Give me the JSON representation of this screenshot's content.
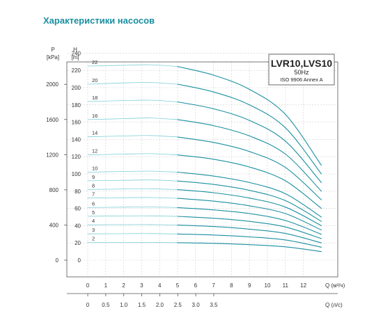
{
  "page_title": "Характеристики насосов",
  "chart_data": {
    "type": "line",
    "title": "LVR10,LVS10",
    "subtitle": "50Hz",
    "standard": "ISO 9906 Annex A",
    "y_left_label": "P",
    "y_left_unit": "[kPa]",
    "y_right_label": "H",
    "y_right_unit": "[m]",
    "x_label": "Q (м³/ч)",
    "x2_label": "Q (л/с)",
    "xlim": [
      0,
      13
    ],
    "ylim": [
      0,
      240
    ],
    "x_ticks": [
      0,
      1,
      2,
      3,
      4,
      5,
      6,
      7,
      8,
      9,
      10,
      11,
      12
    ],
    "x2_ticks": [
      0,
      0.5,
      1.0,
      1.5,
      2.0,
      2.5,
      3.0,
      3.5
    ],
    "x2_tick_labels": [
      "0",
      "0.5",
      "1.0",
      "1.5",
      "2.0",
      "2.5",
      "3.0",
      "3.5"
    ],
    "y_ticks": [
      0,
      20,
      40,
      60,
      80,
      100,
      120,
      140,
      160,
      180,
      200,
      220,
      240
    ],
    "p_ticks": [
      0,
      400,
      800,
      1200,
      1600,
      2000
    ],
    "grid": true,
    "series": [
      {
        "name": "2",
        "x": [
          0,
          2,
          3.5,
          5,
          7,
          9,
          11,
          13
        ],
        "y": [
          20.5,
          20.5,
          20.6,
          20.3,
          19.5,
          18,
          15.5,
          10
        ]
      },
      {
        "name": "3",
        "x": [
          0,
          2,
          3.5,
          5,
          7,
          9,
          11,
          13
        ],
        "y": [
          30.5,
          30.7,
          30.8,
          30.4,
          29.2,
          27,
          23.5,
          15
        ]
      },
      {
        "name": "4",
        "x": [
          0,
          2,
          3.5,
          5,
          7,
          9,
          11,
          13
        ],
        "y": [
          41,
          41.2,
          41.3,
          40.8,
          39,
          36,
          31,
          20
        ]
      },
      {
        "name": "5",
        "x": [
          0,
          2,
          3.5,
          5,
          7,
          9,
          11,
          13
        ],
        "y": [
          51,
          51.3,
          51.4,
          50.8,
          48.6,
          45,
          38.5,
          25
        ]
      },
      {
        "name": "6",
        "x": [
          0,
          2,
          3.5,
          5,
          7,
          9,
          11,
          13
        ],
        "y": [
          61,
          61.5,
          61.7,
          61,
          58.3,
          54,
          46,
          30
        ]
      },
      {
        "name": "7",
        "x": [
          0,
          2,
          3.5,
          5,
          7,
          9,
          11,
          13
        ],
        "y": [
          72,
          72.4,
          72.6,
          71.7,
          68.5,
          63,
          54,
          35
        ]
      },
      {
        "name": "8",
        "x": [
          0,
          2,
          3.5,
          5,
          7,
          9,
          11,
          13
        ],
        "y": [
          82,
          82.5,
          82.8,
          81.8,
          78.2,
          72,
          61.5,
          40
        ]
      },
      {
        "name": "9",
        "x": [
          0,
          2,
          3.5,
          5,
          7,
          9,
          11,
          13
        ],
        "y": [
          92,
          92.6,
          93,
          91.8,
          87.8,
          81,
          69,
          45
        ]
      },
      {
        "name": "10",
        "x": [
          0,
          2,
          3.5,
          5,
          7,
          9,
          11,
          13
        ],
        "y": [
          102,
          102.8,
          103.2,
          102,
          97.5,
          90,
          77,
          50
        ]
      },
      {
        "name": "12",
        "x": [
          0,
          2,
          3.5,
          5,
          7,
          9,
          11,
          13
        ],
        "y": [
          122,
          123,
          123.5,
          122,
          117,
          108,
          92,
          60
        ]
      },
      {
        "name": "14",
        "x": [
          0,
          2,
          3.5,
          5,
          7,
          9,
          11,
          13
        ],
        "y": [
          143,
          144,
          144.5,
          142.8,
          136.5,
          126,
          107.5,
          70
        ]
      },
      {
        "name": "16",
        "x": [
          0,
          2,
          3.5,
          5,
          7,
          9,
          11,
          13
        ],
        "y": [
          163,
          164,
          164.8,
          163,
          156,
          144,
          123,
          80
        ]
      },
      {
        "name": "18",
        "x": [
          0,
          2,
          3.5,
          5,
          7,
          9,
          11,
          13
        ],
        "y": [
          184,
          185,
          185.5,
          183.5,
          175.5,
          162,
          138,
          90
        ]
      },
      {
        "name": "20",
        "x": [
          0,
          2,
          3.5,
          5,
          7,
          9,
          11,
          13
        ],
        "y": [
          204,
          205.5,
          206,
          204,
          195,
          180,
          153.5,
          100
        ]
      },
      {
        "name": "22",
        "x": [
          0,
          2,
          3.5,
          5,
          7,
          9,
          11,
          13
        ],
        "y": [
          225,
          226,
          226.5,
          224.5,
          214.5,
          198,
          169,
          110
        ]
      }
    ]
  }
}
